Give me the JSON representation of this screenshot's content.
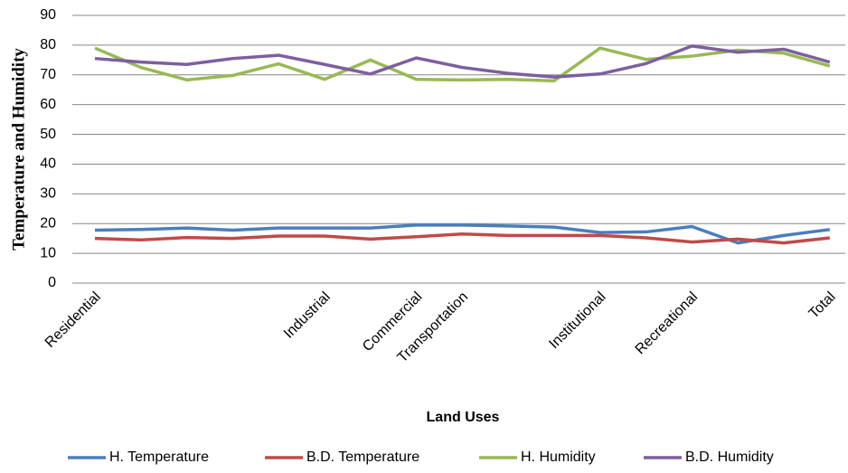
{
  "chart_data": {
    "type": "line",
    "x_label": "Land Uses",
    "y_label": "Temperature and Humidity",
    "categories": [
      "Residential",
      null,
      null,
      null,
      null,
      "Industrial",
      null,
      "Commercial",
      "Transportation",
      null,
      null,
      "Institutional",
      null,
      "Recreational",
      null,
      null,
      "Total"
    ],
    "series": [
      {
        "name": "H. Temperature",
        "color": "#4a7ebb",
        "values": [
          17.8,
          18,
          18.5,
          17.8,
          18.5,
          18.5,
          18.5,
          19.5,
          19.5,
          19.2,
          18.8,
          17,
          17.2,
          19,
          13.5,
          16,
          18
        ]
      },
      {
        "name": "B.D. Temperature",
        "color": "#be4b48",
        "values": [
          15,
          14.5,
          15.3,
          15,
          15.8,
          15.8,
          14.8,
          15.6,
          16.5,
          16,
          16,
          16,
          15.2,
          13.8,
          14.8,
          13.5,
          15.2
        ]
      },
      {
        "name": "H. Humidity",
        "color": "#98b954",
        "values": [
          79,
          72.5,
          68.3,
          69.8,
          73.7,
          68.5,
          75,
          68.5,
          68.3,
          68.5,
          68,
          79,
          75.2,
          76.3,
          78.3,
          77.3,
          73
        ]
      },
      {
        "name": "B.D. Humidity",
        "color": "#7d5fa0",
        "values": [
          75.5,
          74.3,
          73.5,
          75.5,
          76.6,
          73.5,
          70.3,
          75.7,
          72.5,
          70.5,
          69.3,
          70.3,
          73.8,
          79.7,
          77.6,
          78.6,
          74.3
        ]
      }
    ],
    "ylim": [
      0,
      90
    ],
    "yticks": [
      0,
      10,
      20,
      30,
      40,
      50,
      60,
      70,
      80,
      90
    ],
    "grid": true,
    "legend": "bottom"
  }
}
